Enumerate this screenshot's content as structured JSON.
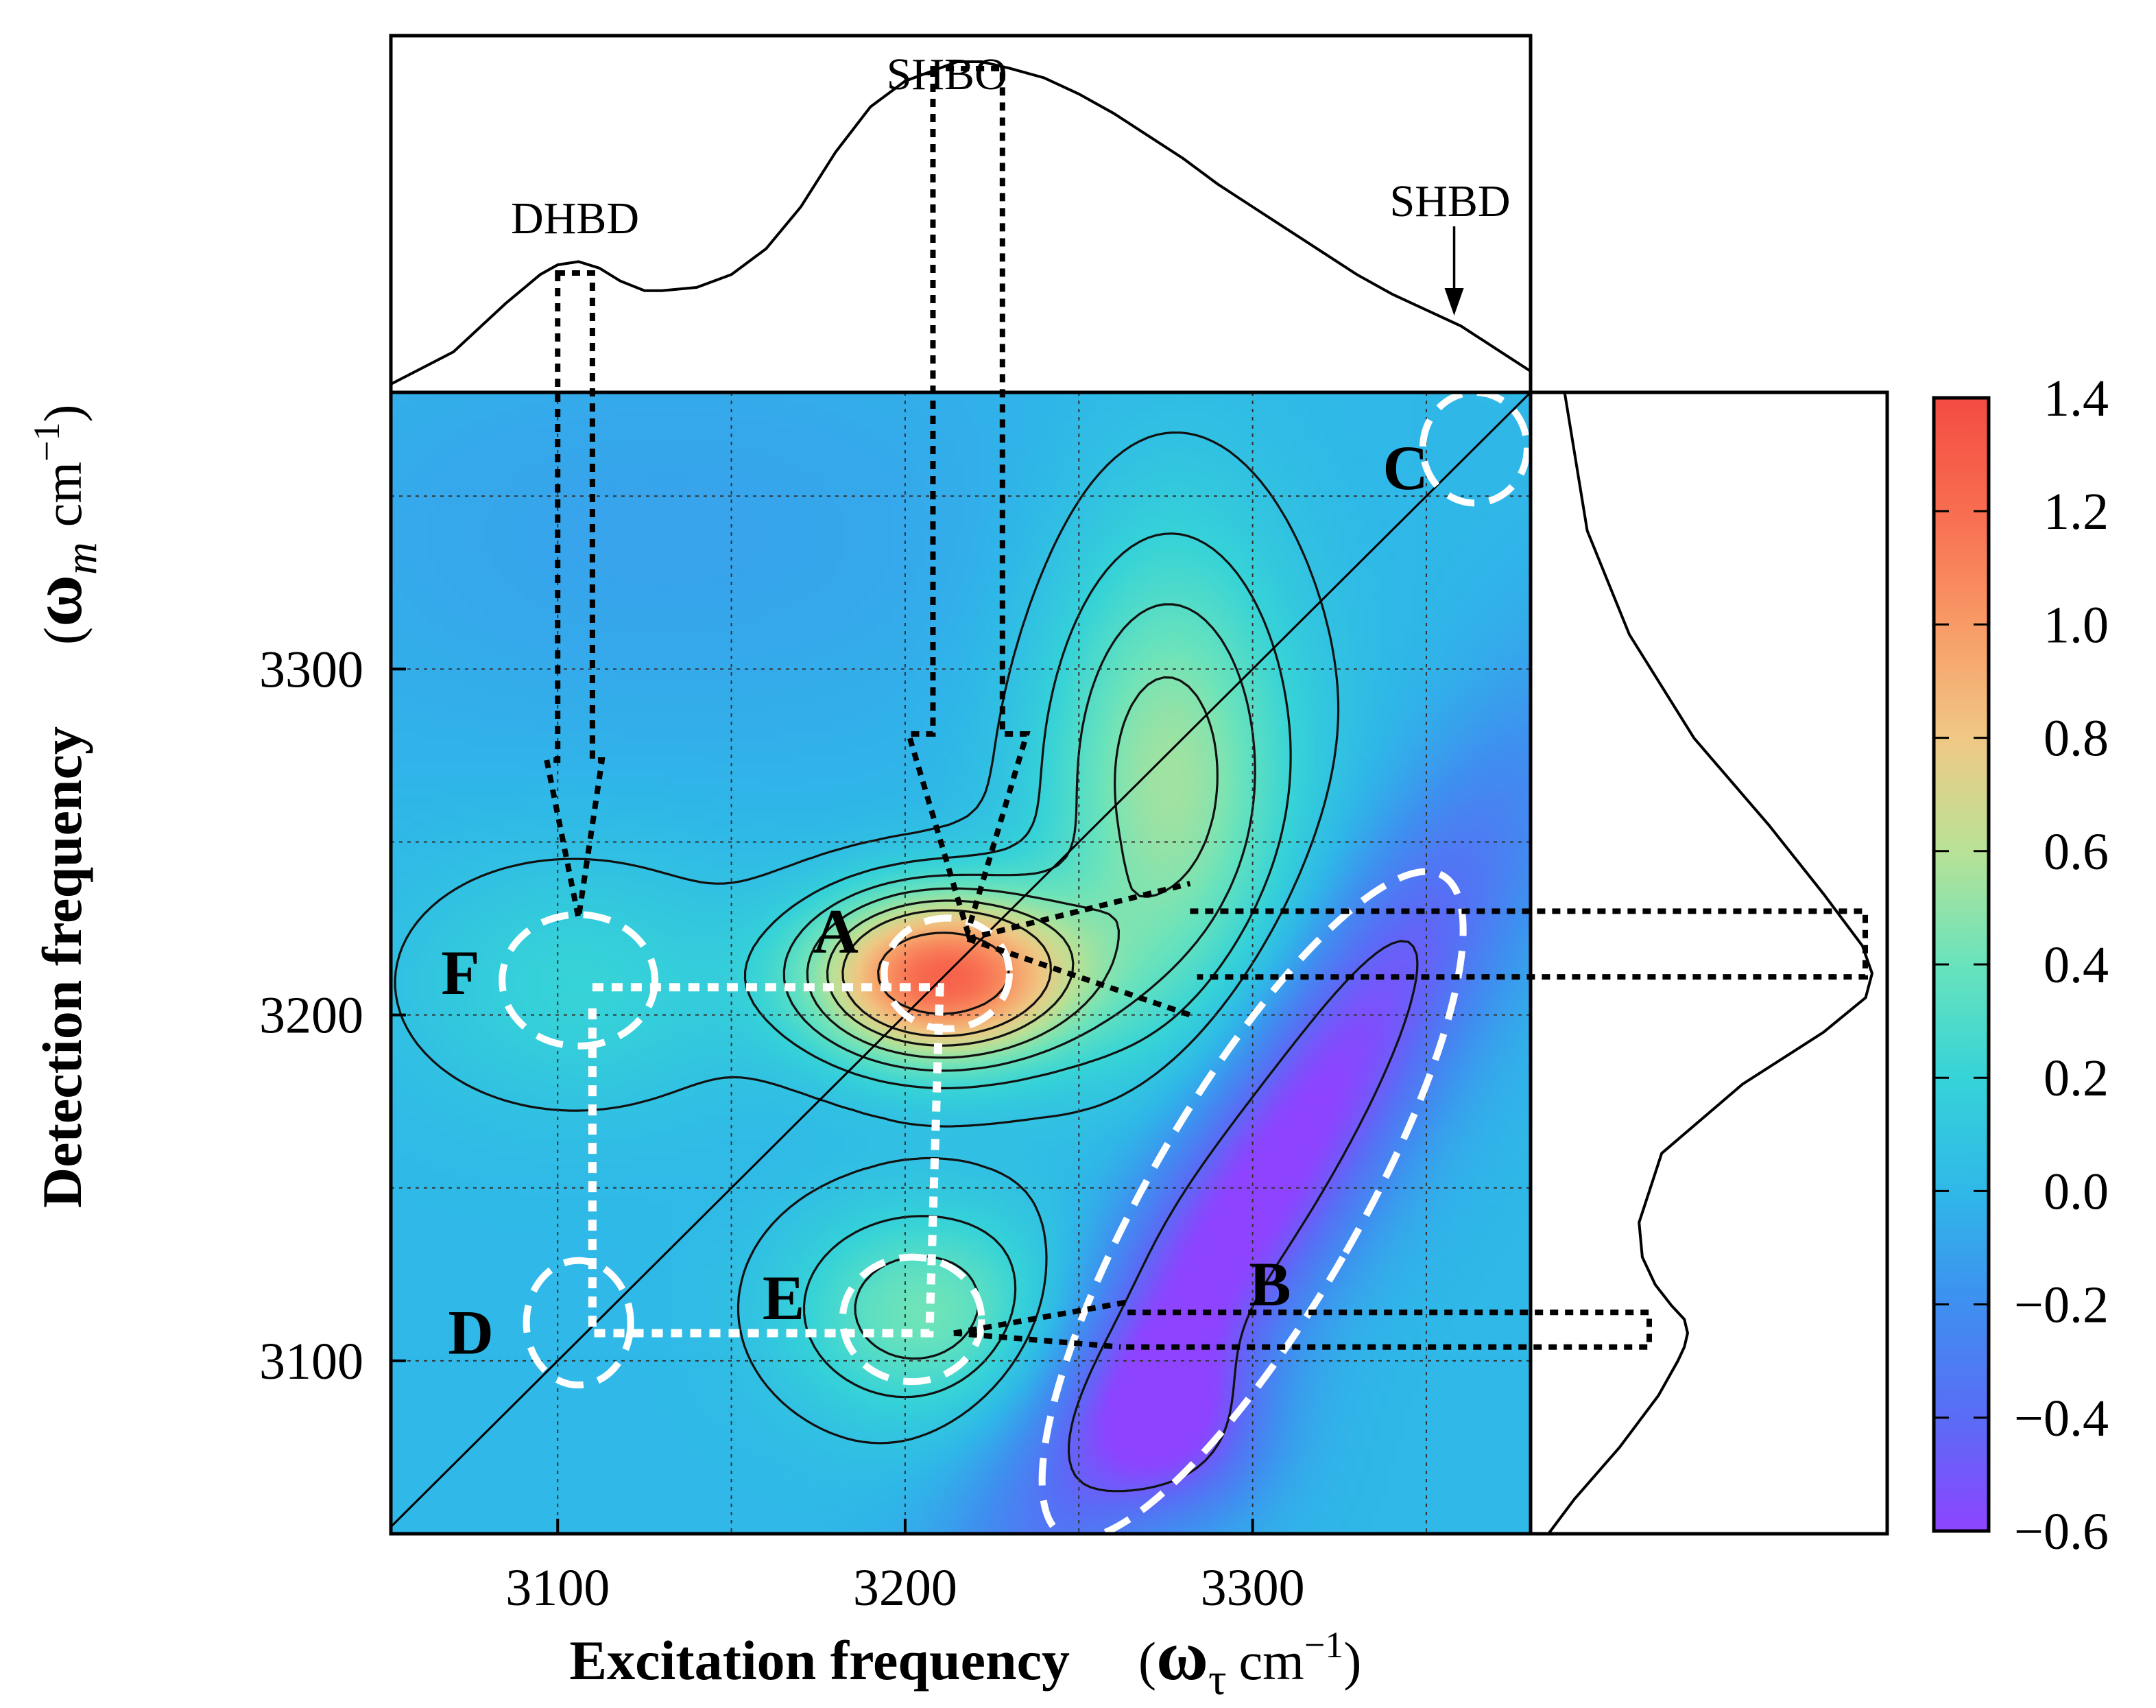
{
  "chart_data": {
    "type": "heatmap",
    "title": "",
    "xlabel": "Excitation frequency",
    "xlabel_unit_prefix": "(",
    "xlabel_symbol": "ω",
    "xlabel_symbol_sub": "τ",
    "xlabel_unit": "cm",
    "xlabel_unit_exp": "−1",
    "xlabel_unit_suffix": ")",
    "ylabel": "Detection frequency",
    "ylabel_unit_prefix": "(",
    "ylabel_symbol": "ω",
    "ylabel_symbol_sub": "m",
    "ylabel_unit": "cm",
    "ylabel_unit_exp": "−1",
    "ylabel_unit_suffix": ")",
    "xlim": [
      3052,
      3380
    ],
    "ylim": [
      3050,
      3380
    ],
    "x_ticks": [
      {
        "value": 3100,
        "label": "3100"
      },
      {
        "value": 3200,
        "label": "3200"
      },
      {
        "value": 3300,
        "label": "3300"
      }
    ],
    "y_ticks": [
      {
        "value": 3100,
        "label": "3100"
      },
      {
        "value": 3200,
        "label": "3200"
      },
      {
        "value": 3300,
        "label": "3300"
      }
    ],
    "grid": true,
    "grid_step": 50,
    "diagonal": true,
    "colorbar": {
      "min": -0.6,
      "max": 1.4,
      "ticks": [
        "1.4",
        "1.2",
        "1.0",
        "0.8",
        "0.6",
        "0.4",
        "0.2",
        "0.0",
        "−0.2",
        "−0.4",
        "−0.6"
      ],
      "colormap": [
        "#8e44ff",
        "#5a6cf6",
        "#3f8ff0",
        "#2fb8e8",
        "#36d3d8",
        "#69e3bc",
        "#b8e296",
        "#f0c884",
        "#f89a66",
        "#f86d50",
        "#f44c43"
      ]
    },
    "peaks_2d": [
      {
        "x": 3210,
        "y": 3212,
        "amp": 1.25,
        "sx": 26,
        "sy": 17,
        "rot": 0
      },
      {
        "x": 3275,
        "y": 3270,
        "amp": 0.55,
        "sx": 26,
        "sy": 52,
        "rot": 0
      },
      {
        "x": 3205,
        "y": 3115,
        "amp": 0.42,
        "sx": 28,
        "sy": 22,
        "rot": 0
      },
      {
        "x": 3105,
        "y": 3210,
        "amp": 0.2,
        "sx": 36,
        "sy": 26,
        "rot": 0
      },
      {
        "x": 3300,
        "y": 3150,
        "amp": -0.68,
        "sx": 20,
        "sy": 95,
        "rot": 32
      },
      {
        "x": 3280,
        "y": 3080,
        "amp": -0.35,
        "sx": 18,
        "sy": 18,
        "rot": 0
      },
      {
        "x": 3130,
        "y": 3340,
        "amp": -0.1,
        "sx": 90,
        "sy": 45,
        "rot": 0
      }
    ],
    "contour_levels": [
      -0.45,
      0.07,
      0.2,
      0.33,
      0.46,
      0.6,
      0.72,
      1.0
    ],
    "top_spectrum": {
      "x": [
        3052,
        3070,
        3085,
        3095,
        3100,
        3106,
        3112,
        3118,
        3125,
        3130,
        3140,
        3150,
        3160,
        3170,
        3180,
        3190,
        3200,
        3210,
        3215,
        3222,
        3230,
        3240,
        3250,
        3260,
        3270,
        3280,
        3290,
        3300,
        3310,
        3320,
        3330,
        3340,
        3350,
        3360,
        3370,
        3380
      ],
      "y": [
        0.0,
        0.1,
        0.25,
        0.34,
        0.37,
        0.38,
        0.36,
        0.32,
        0.29,
        0.29,
        0.3,
        0.34,
        0.42,
        0.55,
        0.72,
        0.86,
        0.94,
        0.98,
        1.0,
        1.0,
        0.98,
        0.95,
        0.9,
        0.84,
        0.77,
        0.7,
        0.62,
        0.55,
        0.48,
        0.41,
        0.34,
        0.28,
        0.23,
        0.18,
        0.11,
        0.04
      ]
    },
    "side_spectrum": {
      "y": [
        3050,
        3060,
        3075,
        3090,
        3100,
        3104,
        3108,
        3112,
        3116,
        3122,
        3130,
        3140,
        3160,
        3180,
        3195,
        3205,
        3212,
        3220,
        3235,
        3255,
        3280,
        3310,
        3340,
        3380
      ],
      "x": [
        0.0,
        0.08,
        0.22,
        0.34,
        0.4,
        0.42,
        0.43,
        0.42,
        0.38,
        0.33,
        0.29,
        0.28,
        0.35,
        0.6,
        0.85,
        0.98,
        1.0,
        0.97,
        0.85,
        0.68,
        0.45,
        0.25,
        0.12,
        0.05
      ]
    },
    "peak_labels": [
      {
        "text": "DHBD",
        "x": 3105
      },
      {
        "text": "SHBO",
        "x": 3212
      },
      {
        "text": "SHBD",
        "x": 3358
      }
    ],
    "regions": [
      {
        "label": "A",
        "x": 3212,
        "y": 3212,
        "rx": 18,
        "ry": 16,
        "rot": 0
      },
      {
        "label": "B",
        "x": 3300,
        "y": 3145,
        "rx": 30,
        "ry": 110,
        "rot": 30
      },
      {
        "label": "C",
        "x": 3364,
        "y": 3364,
        "rx": 15,
        "ry": 16,
        "rot": 0
      },
      {
        "label": "D",
        "x": 3106,
        "y": 3111,
        "rx": 15,
        "ry": 18,
        "rot": 0
      },
      {
        "label": "E",
        "x": 3202,
        "y": 3112,
        "rx": 20,
        "ry": 18,
        "rot": 0
      },
      {
        "label": "F",
        "x": 3106,
        "y": 3210,
        "rx": 22,
        "ry": 19,
        "rot": 0
      }
    ],
    "region_label_positions": {
      "A": [
        3180,
        3224
      ],
      "B": [
        3305,
        3122
      ],
      "C": [
        3344,
        3358
      ],
      "D": [
        3075,
        3108
      ],
      "E": [
        3165,
        3118
      ],
      "F": [
        3072,
        3212
      ]
    }
  }
}
